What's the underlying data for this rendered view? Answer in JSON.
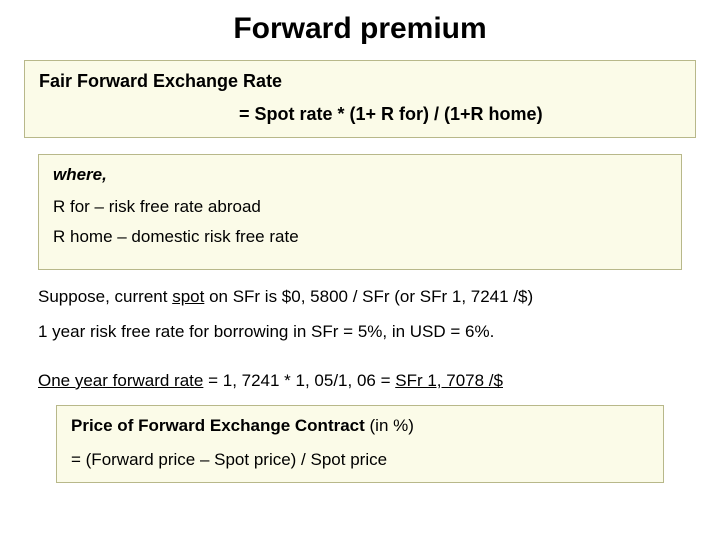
{
  "colors": {
    "box_bg": "#fbfbe8",
    "box_border": "#b8b88a",
    "text": "#000000",
    "page_bg": "#ffffff"
  },
  "title": "Forward premium",
  "formula_box": {
    "heading": "Fair Forward Exchange Rate",
    "formula": "= Spot rate * (1+ R for) / (1+R home)"
  },
  "where_box": {
    "where_label": "where,",
    "lines": [
      "R for – risk free rate abroad",
      "R home – domestic risk free rate"
    ]
  },
  "body": {
    "l1_a": "Suppose, current ",
    "l1_spot": "spot",
    "l1_b": " on SFr is $0, 5800 / SFr (or SFr 1, 7241 /$)",
    "l2": "1 year risk free rate for borrowing in SFr = 5%, in USD = 6%.",
    "l3_a": "One year forward rate",
    "l3_b": " = 1, 7241 * 1, 05/1, 06 = ",
    "l3_c": "SFr 1, 7078 /$"
  },
  "price_box": {
    "heading_bold": "Price of Forward Exchange Contract ",
    "heading_paren": "(in %)",
    "formula": "= (Forward price – Spot price) / Spot price"
  }
}
